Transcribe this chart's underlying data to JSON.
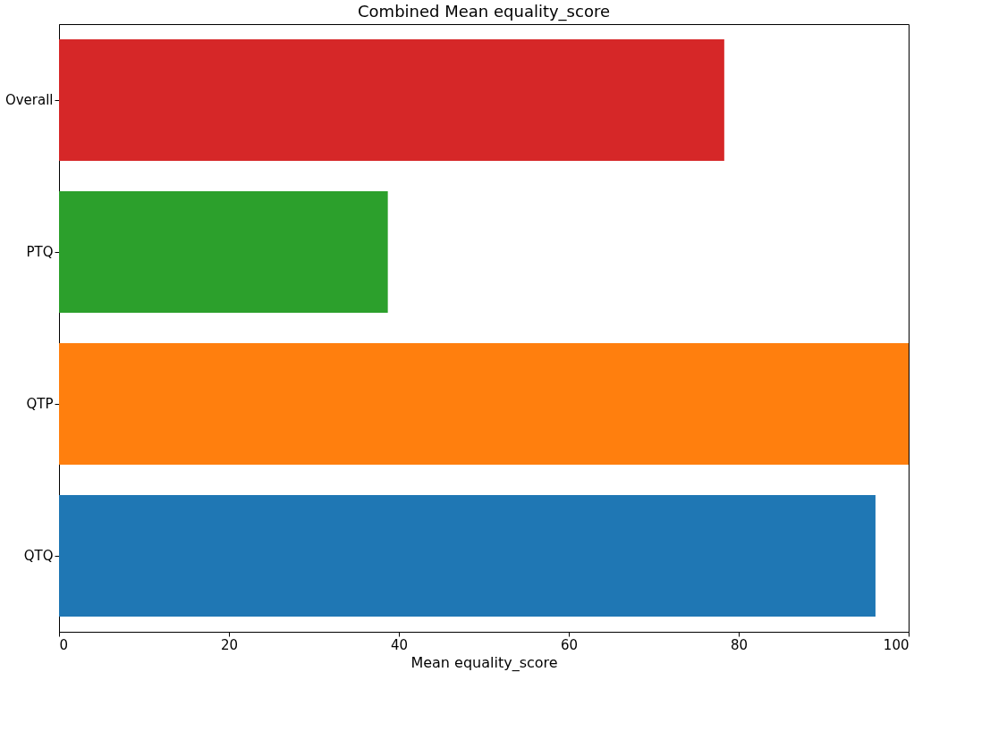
{
  "chart_data": {
    "type": "bar",
    "orientation": "horizontal",
    "title": "Combined Mean equality_score",
    "xlabel": "Mean equality_score",
    "categories": [
      "Overall",
      "PTQ",
      "QTP",
      "QTQ"
    ],
    "values": [
      78.3,
      38.7,
      100,
      96.1
    ],
    "colors": [
      "#d62728",
      "#2ca02c",
      "#ff7f0e",
      "#1f77b4"
    ],
    "xlim": [
      0,
      100
    ],
    "xticks": [
      0,
      20,
      40,
      60,
      80,
      100
    ],
    "grid": false
  }
}
